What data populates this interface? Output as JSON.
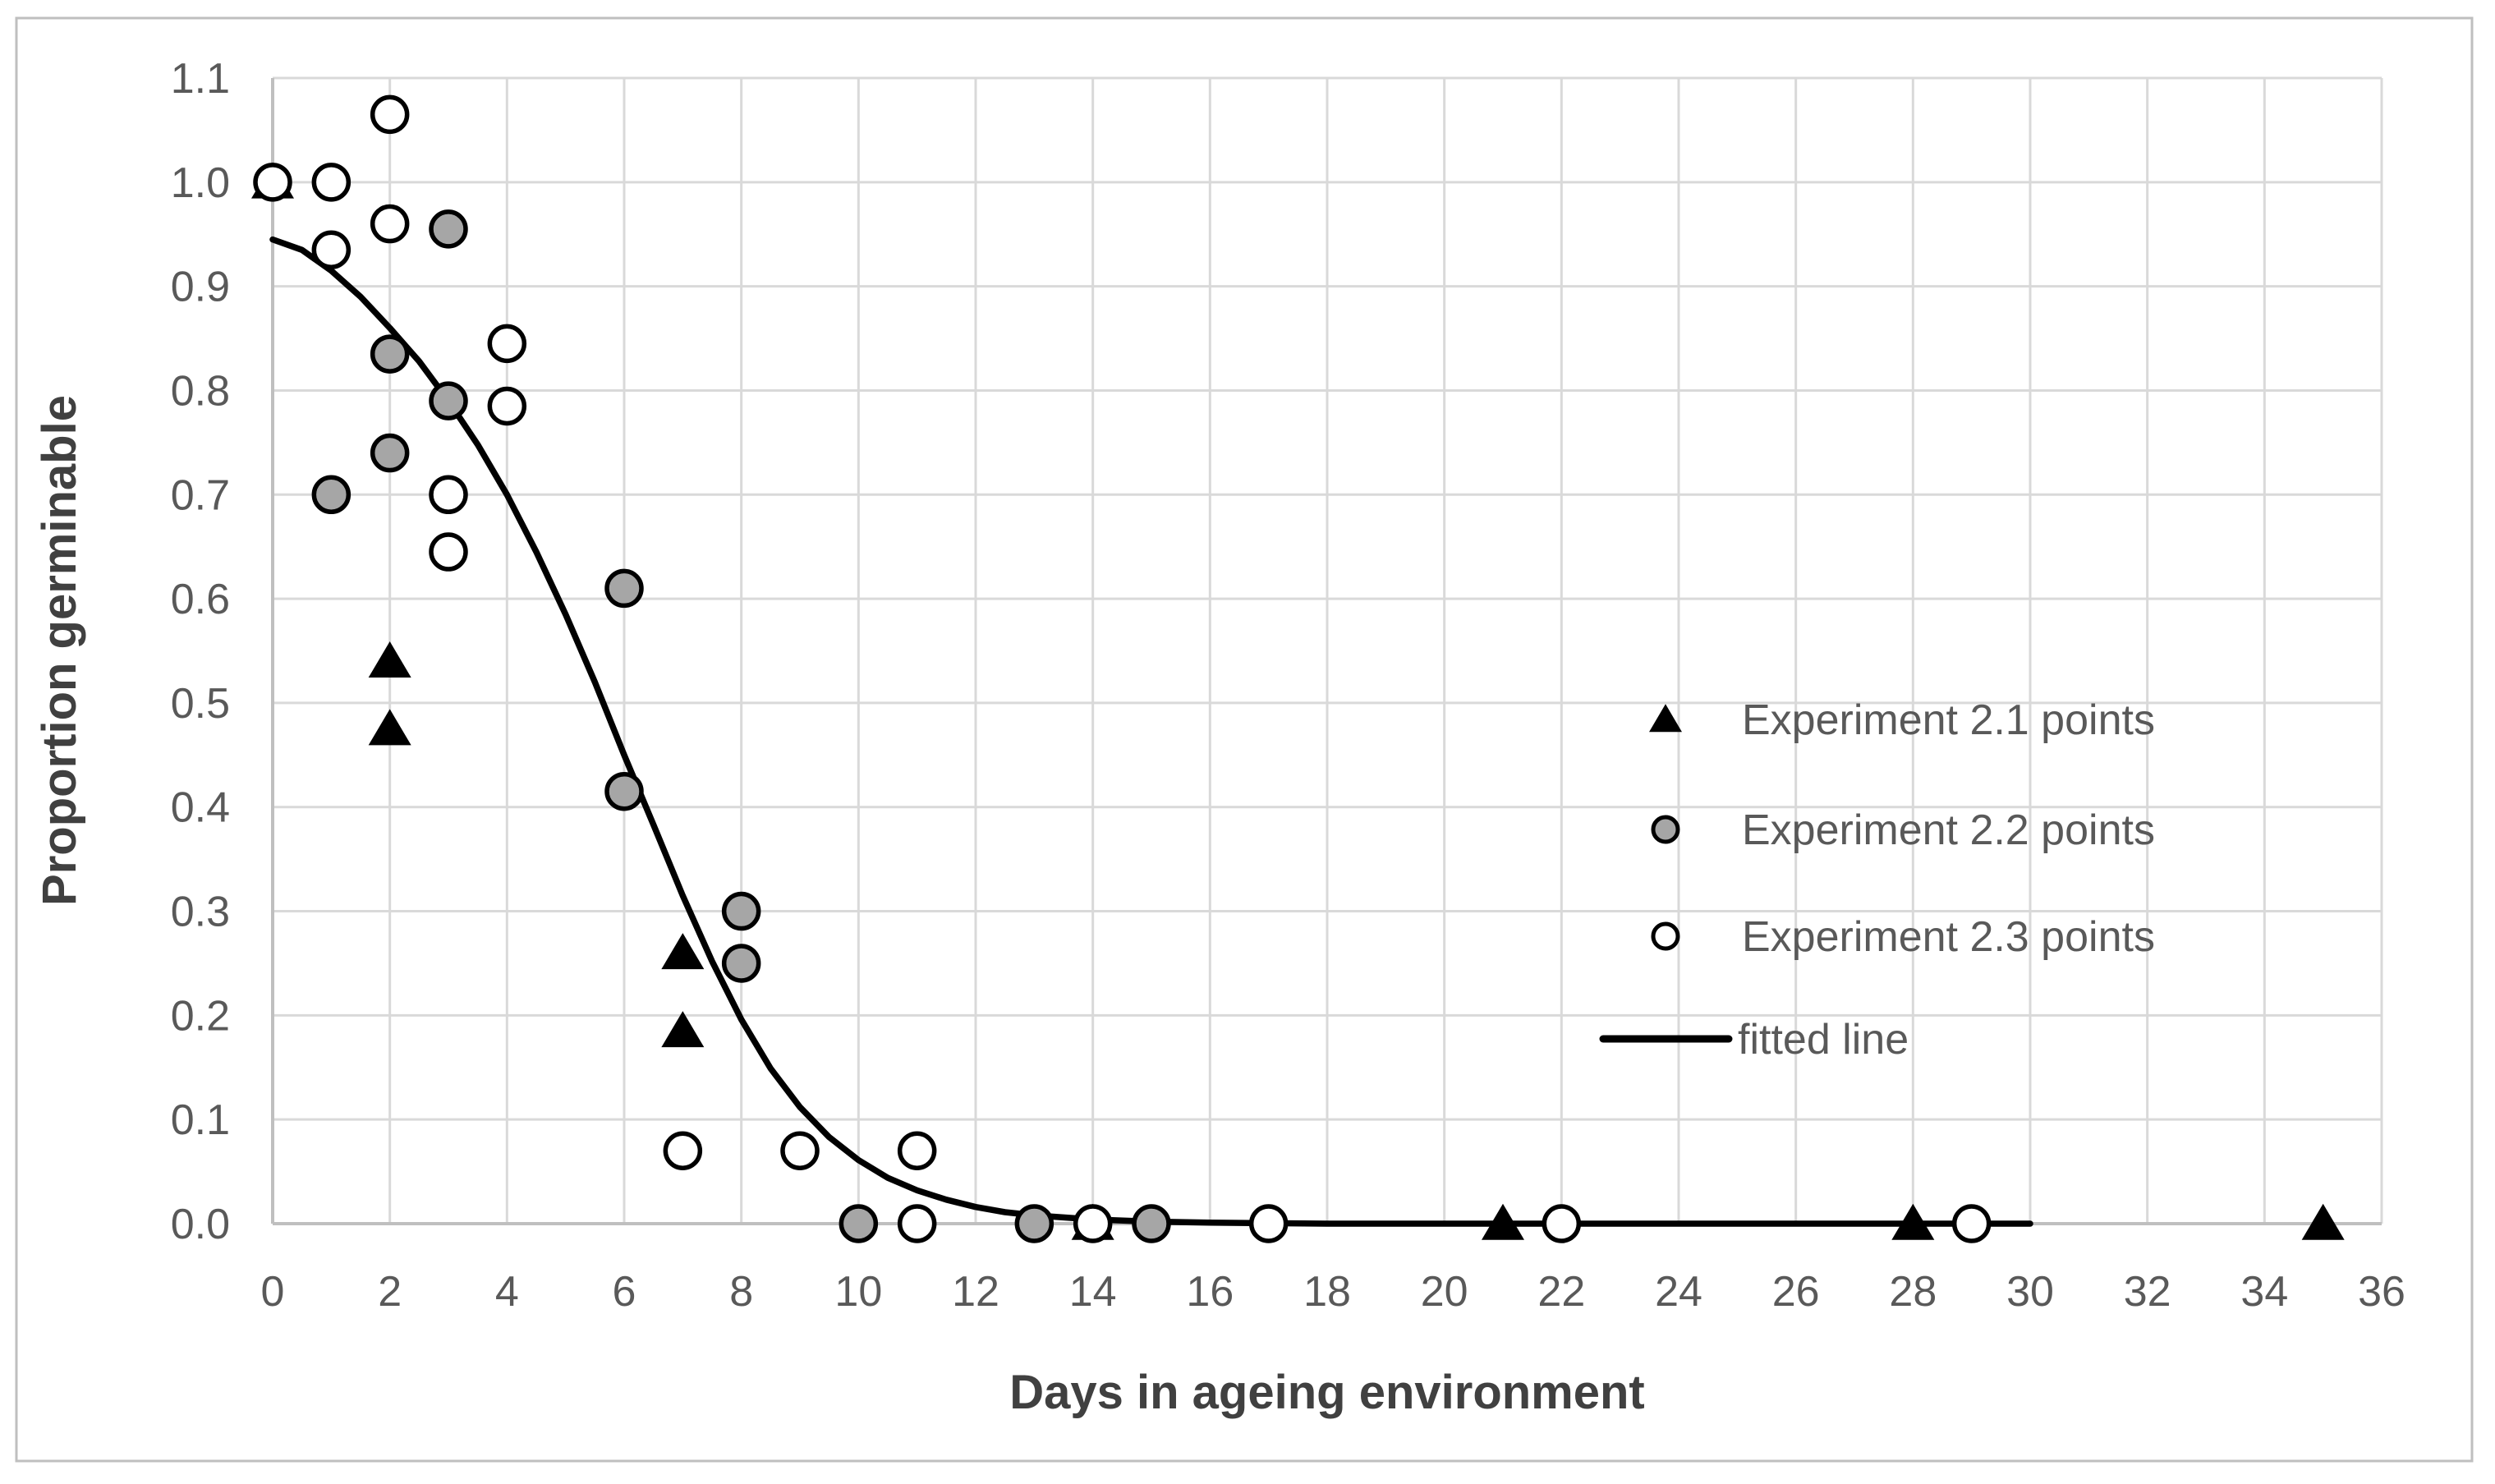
{
  "chart_data": {
    "type": "scatter",
    "title": "",
    "xlabel": "Days in ageing environment",
    "ylabel": "Proportion germinable",
    "xlim": [
      0,
      36
    ],
    "ylim": [
      0.0,
      1.1
    ],
    "x_ticks": [
      0,
      2,
      4,
      6,
      8,
      10,
      12,
      14,
      16,
      18,
      20,
      22,
      24,
      26,
      28,
      30,
      32,
      34,
      36
    ],
    "y_tick_labels": [
      "0.0",
      "0.1",
      "0.2",
      "0.3",
      "0.4",
      "0.5",
      "0.6",
      "0.7",
      "0.8",
      "0.9",
      "1.0",
      "1.1"
    ],
    "grid": true,
    "legend_position": "inside-right",
    "colors": {
      "background": "#ffffff",
      "figure_border": "#bfbfbf",
      "gridline": "#d9d9d9",
      "axis_line": "#bfbfbf",
      "tick_label": "#595959",
      "axis_title": "#404040",
      "series_black": "#000000",
      "series_gray_fill": "#a6a6a6",
      "series_open_fill": "#ffffff",
      "marker_stroke": "#000000",
      "fitted_line": "#000000"
    },
    "series": [
      {
        "name": "Experiment 2.1 points",
        "marker": "triangle",
        "icon": "triangle-marker",
        "fill": "#000000",
        "points": [
          [
            0,
            1.0
          ],
          [
            2,
            0.54
          ],
          [
            2,
            0.475
          ],
          [
            7,
            0.26
          ],
          [
            7,
            0.185
          ],
          [
            14,
            0.0
          ],
          [
            21,
            0.0
          ],
          [
            28,
            0.0
          ],
          [
            35,
            0.0
          ]
        ]
      },
      {
        "name": "Experiment 2.2 points",
        "marker": "circle",
        "icon": "gray-circle-marker",
        "fill": "#a6a6a6",
        "points": [
          [
            1,
            0.7
          ],
          [
            2,
            0.835
          ],
          [
            2,
            0.74
          ],
          [
            3,
            0.955
          ],
          [
            3,
            0.79
          ],
          [
            6,
            0.61
          ],
          [
            6,
            0.415
          ],
          [
            8,
            0.3
          ],
          [
            8,
            0.25
          ],
          [
            10,
            0.0
          ],
          [
            13,
            0.0
          ],
          [
            15,
            0.0
          ]
        ]
      },
      {
        "name": "Experiment 2.3 points",
        "marker": "circle",
        "icon": "open-circle-marker",
        "fill": "#ffffff",
        "points": [
          [
            0,
            1.0
          ],
          [
            1,
            1.0
          ],
          [
            1,
            0.935
          ],
          [
            2,
            1.065
          ],
          [
            2,
            0.96
          ],
          [
            3,
            0.7
          ],
          [
            3,
            0.645
          ],
          [
            4,
            0.845
          ],
          [
            4,
            0.785
          ],
          [
            7,
            0.07
          ],
          [
            9,
            0.07
          ],
          [
            11,
            0.07
          ],
          [
            11,
            0.0
          ],
          [
            14,
            0.0
          ],
          [
            17,
            0.0
          ],
          [
            22,
            0.0
          ],
          [
            29,
            0.0
          ]
        ]
      },
      {
        "name": "fitted line",
        "marker": "line",
        "icon": "line-swatch",
        "color": "#000000",
        "points": [
          [
            0,
            0.945
          ],
          [
            0.5,
            0.935
          ],
          [
            1,
            0.915
          ],
          [
            1.5,
            0.89
          ],
          [
            2,
            0.86
          ],
          [
            2.5,
            0.828
          ],
          [
            3,
            0.79
          ],
          [
            3.5,
            0.748
          ],
          [
            4,
            0.7
          ],
          [
            4.5,
            0.645
          ],
          [
            5,
            0.585
          ],
          [
            5.5,
            0.52
          ],
          [
            6,
            0.45
          ],
          [
            6.5,
            0.383
          ],
          [
            7,
            0.315
          ],
          [
            7.5,
            0.252
          ],
          [
            8,
            0.196
          ],
          [
            8.5,
            0.149
          ],
          [
            9,
            0.112
          ],
          [
            9.5,
            0.083
          ],
          [
            10,
            0.061
          ],
          [
            10.5,
            0.044
          ],
          [
            11,
            0.032
          ],
          [
            11.5,
            0.023
          ],
          [
            12,
            0.016
          ],
          [
            12.5,
            0.011
          ],
          [
            13,
            0.008
          ],
          [
            14,
            0.004
          ],
          [
            15,
            0.002
          ],
          [
            16,
            0.001
          ],
          [
            17,
            0.0005
          ],
          [
            18,
            0.0
          ],
          [
            20,
            0.0
          ],
          [
            22,
            0.0
          ],
          [
            24,
            0.0
          ],
          [
            26,
            0.0
          ],
          [
            28,
            0.0
          ],
          [
            30,
            0.0
          ]
        ]
      }
    ]
  },
  "layout_text": {
    "x_axis_title": "Days in ageing environment",
    "y_axis_title": "Proportion germinable"
  }
}
